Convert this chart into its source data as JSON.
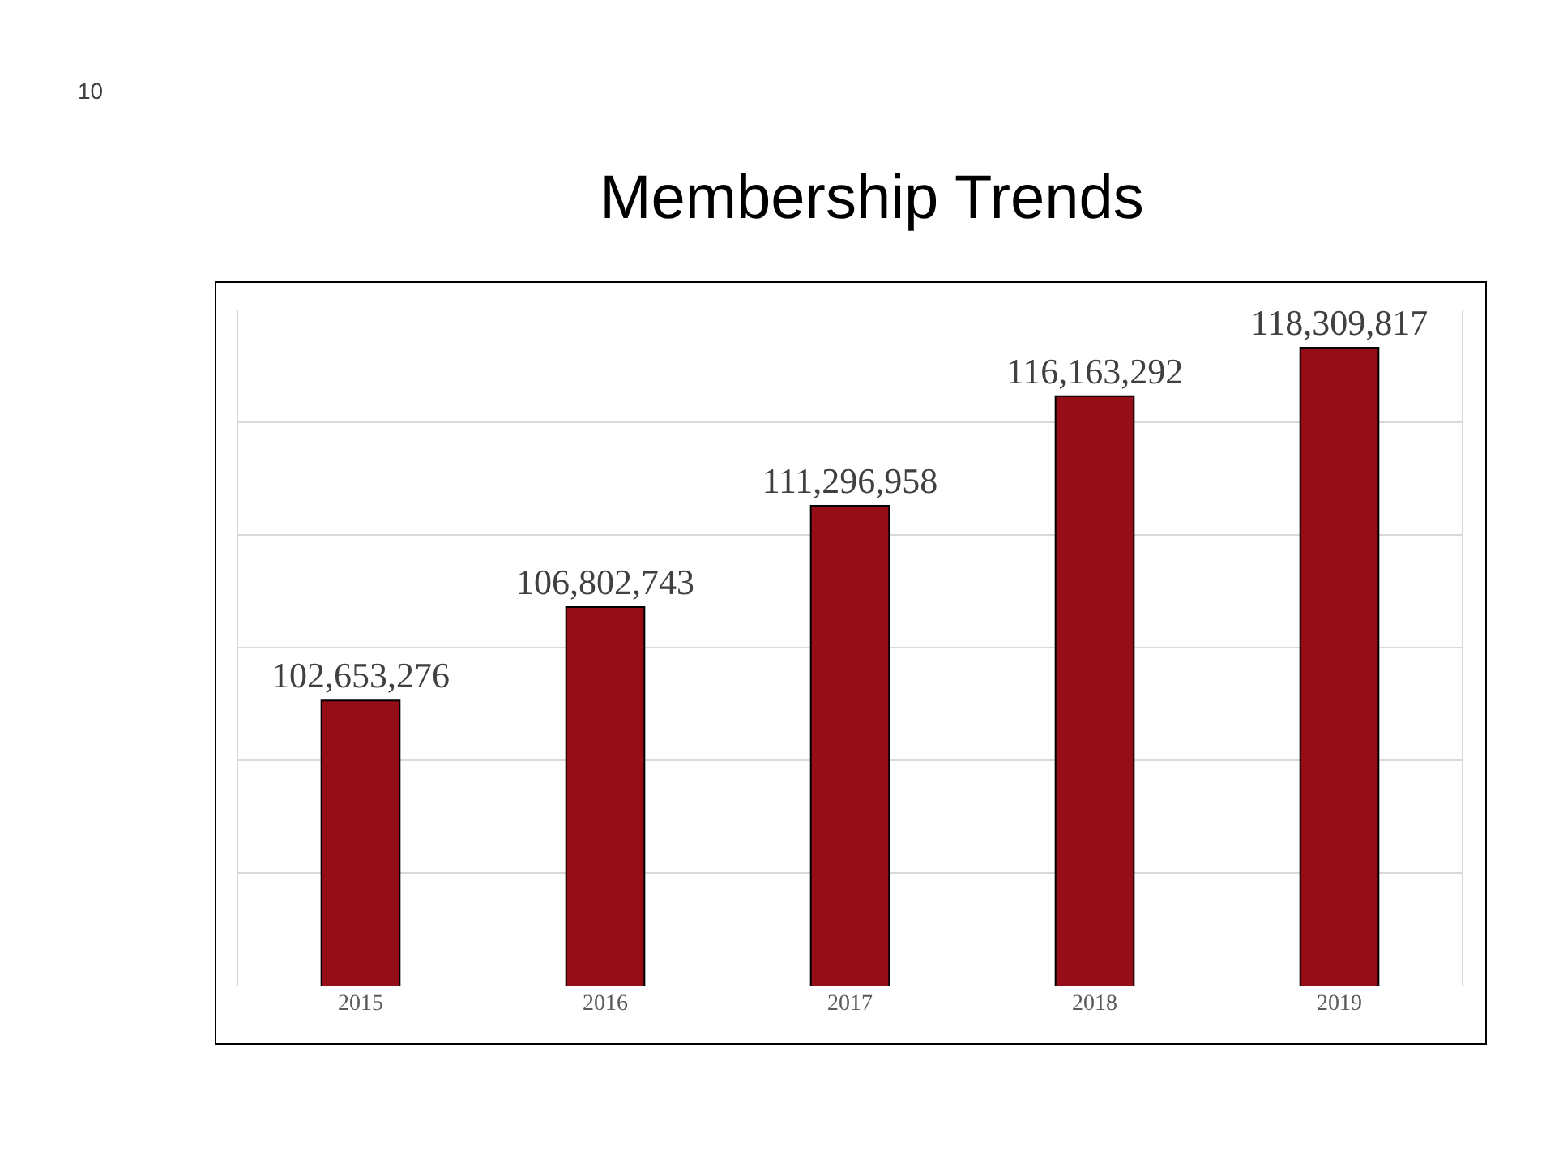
{
  "chart_data": {
    "type": "bar",
    "title": "Membership Trends",
    "categories": [
      "2015",
      "2016",
      "2017",
      "2018",
      "2019"
    ],
    "values": [
      102653276,
      106802743,
      111296958,
      116163292,
      118309817
    ],
    "value_labels": [
      "102,653,276",
      "106,802,743",
      "111,296,958",
      "116,163,292",
      "118,309,817"
    ],
    "color": "#950e17",
    "ylim": [
      90000000,
      120000000
    ],
    "tick_labels": "x",
    "grid": "y",
    "annotations": [
      "10"
    ]
  }
}
